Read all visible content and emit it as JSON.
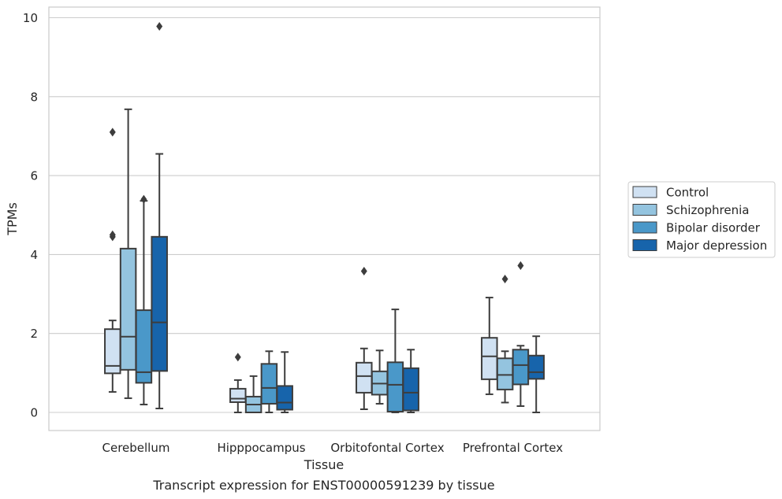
{
  "chart_data": {
    "type": "box",
    "title": "Transcript expression for ENST00000591239 by tissue",
    "xlabel": "Tissue",
    "ylabel": "TPMs",
    "ylim": [
      -0.45,
      10.25
    ],
    "yticks": [
      0,
      2,
      4,
      6,
      8,
      10
    ],
    "grid": true,
    "legend_position": "right",
    "categories": [
      "Cerebellum",
      "Hipppocampus",
      "Orbitofontal Cortex",
      "Prefrontal Cortex"
    ],
    "series": [
      {
        "name": "Control",
        "color": "#d0e1f2",
        "boxes": [
          {
            "whisker_low": 0.52,
            "q1": 0.99,
            "median": 1.18,
            "q3": 2.11,
            "whisker_high": 2.33,
            "outliers": [
              7.1,
              4.45,
              4.5
            ]
          },
          {
            "whisker_low": 0.0,
            "q1": 0.26,
            "median": 0.35,
            "q3": 0.6,
            "whisker_high": 0.82,
            "outliers": [
              1.4
            ]
          },
          {
            "whisker_low": 0.08,
            "q1": 0.5,
            "median": 0.92,
            "q3": 1.26,
            "whisker_high": 1.62,
            "outliers": [
              3.58
            ]
          },
          {
            "whisker_low": 0.46,
            "q1": 0.84,
            "median": 1.42,
            "q3": 1.89,
            "whisker_high": 2.91,
            "outliers": []
          }
        ]
      },
      {
        "name": "Schizophrenia",
        "color": "#94c4df",
        "boxes": [
          {
            "whisker_low": 0.36,
            "q1": 1.08,
            "median": 1.92,
            "q3": 4.15,
            "whisker_high": 7.68,
            "outliers": []
          },
          {
            "whisker_low": 0.0,
            "q1": 0.0,
            "median": 0.2,
            "q3": 0.4,
            "whisker_high": 0.92,
            "outliers": []
          },
          {
            "whisker_low": 0.22,
            "q1": 0.45,
            "median": 0.73,
            "q3": 1.04,
            "whisker_high": 1.57,
            "outliers": []
          },
          {
            "whisker_low": 0.25,
            "q1": 0.58,
            "median": 0.95,
            "q3": 1.37,
            "whisker_high": 1.55,
            "outliers": [
              3.38
            ]
          }
        ]
      },
      {
        "name": "Bipolar disorder",
        "color": "#4a98c9",
        "boxes": [
          {
            "whisker_low": 0.2,
            "q1": 0.75,
            "median": 1.02,
            "q3": 2.59,
            "whisker_high": 5.36,
            "outliers": [
              5.4
            ]
          },
          {
            "whisker_low": 0.0,
            "q1": 0.22,
            "median": 0.62,
            "q3": 1.23,
            "whisker_high": 1.55,
            "outliers": []
          },
          {
            "whisker_low": 0.0,
            "q1": 0.02,
            "median": 0.7,
            "q3": 1.27,
            "whisker_high": 2.61,
            "outliers": []
          },
          {
            "whisker_low": 0.16,
            "q1": 0.71,
            "median": 1.2,
            "q3": 1.59,
            "whisker_high": 1.69,
            "outliers": [
              3.72
            ]
          }
        ]
      },
      {
        "name": "Major depression",
        "color": "#1764ab",
        "boxes": [
          {
            "whisker_low": 0.1,
            "q1": 1.05,
            "median": 2.28,
            "q3": 4.45,
            "whisker_high": 6.55,
            "outliers": [
              9.78
            ]
          },
          {
            "whisker_low": 0.0,
            "q1": 0.07,
            "median": 0.25,
            "q3": 0.67,
            "whisker_high": 1.53,
            "outliers": []
          },
          {
            "whisker_low": 0.0,
            "q1": 0.05,
            "median": 0.5,
            "q3": 1.12,
            "whisker_high": 1.59,
            "outliers": []
          },
          {
            "whisker_low": 0.0,
            "q1": 0.85,
            "median": 1.02,
            "q3": 1.44,
            "whisker_high": 1.93,
            "outliers": []
          }
        ]
      }
    ]
  }
}
